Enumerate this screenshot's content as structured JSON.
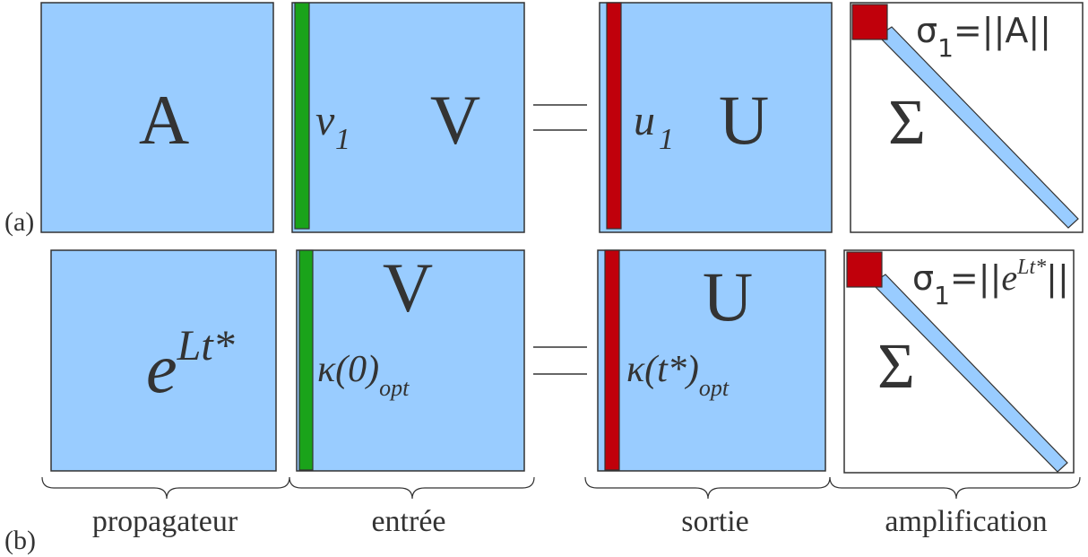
{
  "row_a": {
    "label": "(a)",
    "matrix_propagator": "A",
    "matrix_input": "V",
    "input_vector_name": "v",
    "input_vector_sub": "1",
    "matrix_output": "U",
    "output_vector_name": "u",
    "output_vector_sub": "1",
    "sigma_symbol": "Σ",
    "sigma_formula_head": "σ",
    "sigma_formula_sub": "1",
    "sigma_formula_tail": "=||A||"
  },
  "row_b": {
    "label": "(b)",
    "propagator_base": "e",
    "propagator_exp": "Lt*",
    "matrix_input": "V",
    "input_vector_name": "κ(0)",
    "input_vector_sub": "opt",
    "matrix_output": "U",
    "output_vector_name": "κ(t*)",
    "output_vector_sub": "opt",
    "sigma_symbol": "Σ",
    "sigma_formula_head": "σ",
    "sigma_formula_sub": "1",
    "sigma_formula_mid": "=||",
    "sigma_formula_e": "e",
    "sigma_formula_exp": "Lt*",
    "sigma_formula_tail": "||"
  },
  "captions": {
    "propagator": "propagateur",
    "input": "entrée",
    "output": "sortie",
    "amplification": "amplification"
  },
  "colors": {
    "matrix_fill": "#99CCFF",
    "input_vector": "#1AA31A",
    "output_vector": "#C0000B",
    "outline": "#333333",
    "text": "#333333"
  }
}
